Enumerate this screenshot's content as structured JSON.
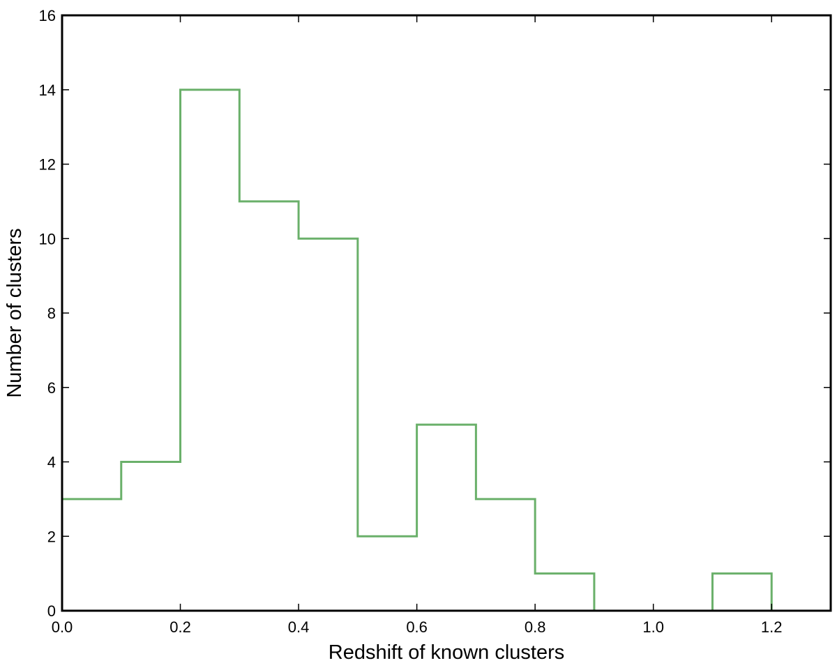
{
  "chart_data": {
    "type": "bar",
    "style": "step-histogram",
    "title": "",
    "xlabel": "Redshift of known clusters",
    "ylabel": "Number of clusters",
    "bin_edges": [
      0.0,
      0.1,
      0.2,
      0.3,
      0.4,
      0.5,
      0.6,
      0.7,
      0.8,
      0.9,
      1.0,
      1.1,
      1.2,
      1.3
    ],
    "values": [
      3,
      4,
      14,
      11,
      10,
      2,
      5,
      3,
      1,
      0,
      0,
      1,
      0
    ],
    "xlim": [
      0.0,
      1.3
    ],
    "ylim": [
      0,
      16
    ],
    "xticks": [
      "0.0",
      "0.2",
      "0.4",
      "0.6",
      "0.8",
      "1.0",
      "1.2"
    ],
    "yticks": [
      "0",
      "2",
      "4",
      "6",
      "8",
      "10",
      "12",
      "14",
      "16"
    ],
    "grid": false,
    "color": "#6ab06a"
  }
}
